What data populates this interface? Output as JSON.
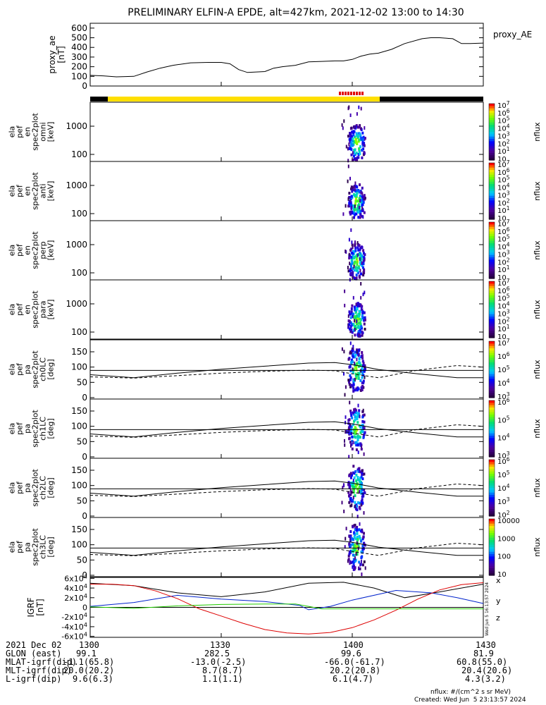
{
  "chart_data": {
    "type": "spectrogram",
    "title": "PRELIMINARY ELFIN-A EPDE, alt=427km, 2021-12-02 13:00 to 14:30",
    "x_axis": {
      "range_minutes": [
        0,
        90
      ],
      "tick_positions_minutes": [
        0,
        30,
        60,
        90
      ],
      "tick_labels": [
        "1300",
        "1330",
        "1400",
        "1430"
      ]
    },
    "ae_panel": {
      "ylabel": [
        "proxy_ae",
        "[nT]"
      ],
      "ylim": [
        0,
        650
      ],
      "yticks": [
        0,
        100,
        200,
        300,
        400,
        500,
        600
      ],
      "legend": "proxy_AE",
      "series": {
        "x_minutes": [
          0,
          3,
          6,
          10,
          13,
          16,
          19,
          23,
          27,
          30,
          32,
          34,
          36,
          38,
          40,
          42,
          44,
          47,
          50,
          53,
          56,
          58,
          60,
          62,
          64,
          66,
          69,
          72,
          76,
          78,
          80,
          83,
          85,
          87,
          90
        ],
        "y": [
          110,
          105,
          95,
          100,
          145,
          185,
          215,
          240,
          245,
          245,
          230,
          170,
          140,
          145,
          150,
          185,
          200,
          215,
          250,
          255,
          260,
          260,
          275,
          310,
          330,
          340,
          380,
          440,
          490,
          500,
          500,
          490,
          440,
          440,
          445
        ]
      }
    },
    "spectrogram_panels": [
      {
        "ylabel": [
          "ela",
          "pef",
          "en",
          "spec2plot",
          "omni",
          "[keV]"
        ],
        "yticks": [
          "100",
          "1000"
        ],
        "colorbar_label": "nflux",
        "colorbar_ticks": [
          "10",
          "10^1",
          "10^2",
          "10^3",
          "10^4",
          "10^5",
          "10^6",
          "10^7"
        ]
      },
      {
        "ylabel": [
          "ela",
          "pef",
          "en",
          "spec2plot",
          "anti",
          "[keV]"
        ],
        "yticks": [
          "100",
          "1000"
        ],
        "colorbar_label": "nflux",
        "colorbar_ticks": [
          "10",
          "10^1",
          "10^2",
          "10^3",
          "10^4",
          "10^5",
          "10^6",
          "10^7"
        ]
      },
      {
        "ylabel": [
          "ela",
          "pef",
          "en",
          "spec2plot",
          "perp",
          "[keV]"
        ],
        "yticks": [
          "100",
          "1000"
        ],
        "colorbar_label": "nflux",
        "colorbar_ticks": [
          "10",
          "10^1",
          "10^2",
          "10^3",
          "10^4",
          "10^5",
          "10^6",
          "10^7"
        ]
      },
      {
        "ylabel": [
          "ela",
          "pef",
          "en",
          "spec2plot",
          "para",
          "[keV]"
        ],
        "yticks": [
          "100",
          "1000"
        ],
        "colorbar_label": "nflux",
        "colorbar_ticks": [
          "10",
          "10^1",
          "10^2",
          "10^3",
          "10^4",
          "10^5",
          "10^6",
          "10^7"
        ]
      },
      {
        "ylabel": [
          "ela",
          "pef",
          "pa",
          "spec2plot",
          "ch0LC",
          "[deg]"
        ],
        "yticks": [
          "0",
          "50",
          "100",
          "150"
        ],
        "colorbar_label": "nflux",
        "colorbar_ticks": [
          "10^3",
          "10^4",
          "10^5",
          "10^6",
          "10^7"
        ]
      },
      {
        "ylabel": [
          "ela",
          "pef",
          "pa",
          "spec2plot",
          "ch1LC",
          "[deg]"
        ],
        "yticks": [
          "0",
          "50",
          "100",
          "150"
        ],
        "colorbar_label": "nflux",
        "colorbar_ticks": [
          "10^3",
          "10^4",
          "10^5",
          "10^6"
        ]
      },
      {
        "ylabel": [
          "ela",
          "pef",
          "pa",
          "spec2plot",
          "ch2LC",
          "[deg]"
        ],
        "yticks": [
          "0",
          "50",
          "100",
          "150"
        ],
        "colorbar_label": "nflux",
        "colorbar_ticks": [
          "10^2",
          "10^3",
          "10^4",
          "10^5",
          "10^6"
        ]
      },
      {
        "ylabel": [
          "ela",
          "pef",
          "pa",
          "spec2plot",
          "ch3LC",
          "[deg]"
        ],
        "yticks": [
          "0",
          "50",
          "100",
          "150"
        ],
        "colorbar_label": "nflux",
        "colorbar_ticks": [
          "10",
          "100",
          "1000",
          "10000"
        ]
      }
    ],
    "igrf_panel": {
      "ylabel": [
        "IGRF",
        "[nT]"
      ],
      "ylim": [
        -62000,
        62000
      ],
      "ytick_labels": [
        "6x10^4",
        "4x10^4",
        "2x10^4",
        "0",
        "-2x10^4",
        "-4x10^4",
        "-6x10^4"
      ],
      "legend": [
        "x",
        "y",
        "z"
      ],
      "series": [
        {
          "name": "x",
          "color": "#000000",
          "x_minutes": [
            0,
            10,
            20,
            30,
            40,
            50,
            58,
            65,
            72,
            80,
            90
          ],
          "y": [
            50000,
            45000,
            30000,
            22000,
            32000,
            50000,
            52000,
            40000,
            20000,
            32000,
            48000
          ]
        },
        {
          "name": "y",
          "color": "#0022cc",
          "x_minutes": [
            0,
            10,
            20,
            30,
            40,
            48,
            50,
            55,
            60,
            70,
            78,
            84,
            90
          ],
          "y": [
            2000,
            10000,
            25000,
            17000,
            12000,
            4000,
            -5000,
            2000,
            15000,
            35000,
            30000,
            20000,
            8000
          ]
        },
        {
          "name": "z",
          "color": "#dd0000",
          "x_minutes": [
            0,
            5,
            10,
            15,
            20,
            25,
            30,
            35,
            40,
            45,
            50,
            55,
            60,
            65,
            70,
            75,
            80,
            85,
            90
          ],
          "y": [
            48000,
            48000,
            45000,
            34000,
            18000,
            -3000,
            -18000,
            -33000,
            -46000,
            -53000,
            -55000,
            -52000,
            -42000,
            -26000,
            -6000,
            17000,
            36000,
            47000,
            51000
          ]
        },
        {
          "name": "",
          "color": "#22cc00",
          "x_minutes": [
            0,
            10,
            20,
            30,
            40,
            47,
            50,
            53,
            60,
            70,
            80,
            85,
            90
          ],
          "y": [
            1000,
            -2000,
            3000,
            6000,
            7000,
            7000,
            2000,
            -3000,
            -3000,
            -3000,
            -3000,
            -3000,
            -3000
          ]
        }
      ]
    },
    "pa_lines": {
      "x_minutes": [
        0,
        10,
        20,
        30,
        40,
        50,
        56,
        60,
        66,
        75,
        84,
        90
      ],
      "solid": [
        75,
        65,
        80,
        93,
        103,
        113,
        115,
        108,
        92,
        78,
        65,
        65
      ],
      "dashed": [
        68,
        64,
        72,
        80,
        86,
        90,
        88,
        78,
        65,
        90,
        105,
        100
      ],
      "reference": [
        89
      ]
    },
    "footer_table": {
      "rows": [
        {
          "label": "2021 Dec 02",
          "values": [
            "1300",
            "1330",
            "1400",
            "1430"
          ]
        },
        {
          "label": "GLON (east)",
          "values": [
            "99.1",
            "282.5",
            "99.6",
            "81.9"
          ]
        },
        {
          "label": "MLAT-igrf(dip)",
          "values": [
            "-1.1(65.8)",
            "-13.0(-2.5)",
            "-66.0(-61.7)",
            "60.8(55.0)"
          ]
        },
        {
          "label": "MLT-igrf(dip)",
          "values": [
            "20.0(20.2)",
            "8.7(8.7)",
            "20.2(20.8)",
            "20.4(20.6)"
          ]
        },
        {
          "label": "L-igrf(dip)",
          "values": [
            "9.6(6.3)",
            "1.1(1.1)",
            "6.1(4.7)",
            "4.3(3.2)"
          ]
        }
      ]
    },
    "notes": {
      "units": "nflux: #/(cm^2 s sr MeV)",
      "created": "Created: Wed Jun  5 23:13:57 2024",
      "side_stamp": "Wed Jun  5 16:13:57 2024"
    }
  }
}
